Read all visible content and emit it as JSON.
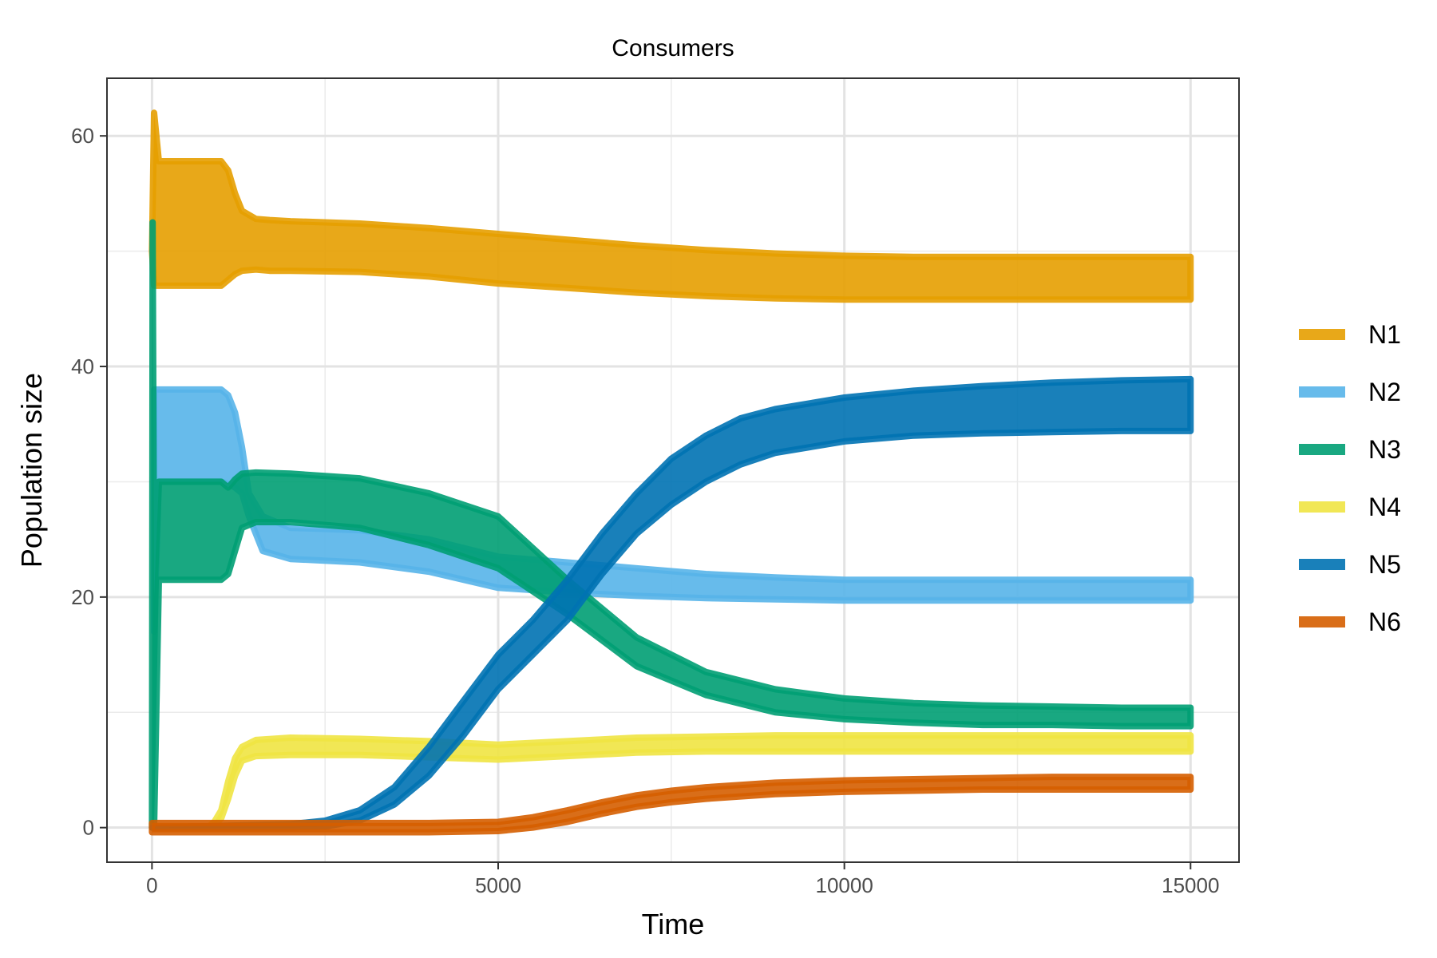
{
  "chart_data": {
    "type": "area",
    "title": "Consumers",
    "xlabel": "Time",
    "ylabel": "Population size",
    "xlim": [
      -650,
      15700
    ],
    "ylim": [
      -3,
      65
    ],
    "xticks": [
      0,
      5000,
      10000,
      15000
    ],
    "xtick_labels": [
      "0",
      "5000",
      "10000",
      "15000"
    ],
    "yticks": [
      0,
      20,
      40,
      60
    ],
    "ytick_labels": [
      "0",
      "20",
      "40",
      "60"
    ],
    "grid": true,
    "legend_position": "right",
    "series": [
      {
        "name": "N1",
        "color": "#E69F00",
        "x": [
          0,
          30,
          100,
          1000,
          1100,
          1200,
          1300,
          1500,
          1700,
          2000,
          3000,
          4000,
          5000,
          6000,
          7000,
          8000,
          9000,
          10000,
          11000,
          12000,
          13000,
          14000,
          15000
        ],
        "y_low": [
          50,
          47,
          47,
          47,
          47.5,
          48,
          48.3,
          48.4,
          48.3,
          48.3,
          48.2,
          47.8,
          47.2,
          46.8,
          46.4,
          46.1,
          45.9,
          45.8,
          45.8,
          45.8,
          45.8,
          45.8,
          45.8
        ],
        "y_high": [
          50,
          62,
          57.8,
          57.8,
          57,
          55,
          53.5,
          52.8,
          52.7,
          52.6,
          52.4,
          52,
          51.5,
          51,
          50.5,
          50.1,
          49.8,
          49.6,
          49.5,
          49.5,
          49.5,
          49.5,
          49.5
        ]
      },
      {
        "name": "N2",
        "color": "#56B4E9",
        "x": [
          30,
          100,
          1000,
          1100,
          1200,
          1300,
          1400,
          1600,
          2000,
          3000,
          4000,
          5000,
          6000,
          7000,
          8000,
          9000,
          10000,
          11000,
          12000,
          13000,
          14000,
          15000
        ],
        "y_low": [
          17,
          30,
          30,
          29.8,
          29.5,
          29,
          27,
          24,
          23.3,
          23,
          22.2,
          20.8,
          20.4,
          20.1,
          19.9,
          19.8,
          19.7,
          19.7,
          19.7,
          19.7,
          19.7,
          19.7
        ],
        "y_high": [
          38,
          38,
          38,
          37.5,
          36,
          33,
          29,
          27,
          26,
          25.8,
          25,
          23.5,
          23,
          22.5,
          22,
          21.7,
          21.5,
          21.5,
          21.5,
          21.5,
          21.5,
          21.5
        ]
      },
      {
        "name": "N3",
        "color": "#009E73",
        "x": [
          0,
          10,
          30,
          100,
          1000,
          1100,
          1200,
          1300,
          1500,
          2000,
          3000,
          4000,
          5000,
          6000,
          7000,
          8000,
          9000,
          10000,
          11000,
          12000,
          13000,
          14000,
          15000
        ],
        "y_low": [
          0,
          0,
          0,
          21.5,
          21.5,
          22,
          24,
          26,
          26.5,
          26.5,
          26,
          24.5,
          22.5,
          18.5,
          14,
          11.5,
          10,
          9.4,
          9.1,
          8.9,
          8.9,
          8.8,
          8.8
        ],
        "y_high": [
          0,
          52.5,
          20,
          30,
          30,
          29.5,
          30.2,
          30.7,
          30.8,
          30.7,
          30.3,
          29,
          27,
          21.5,
          16.5,
          13.5,
          12,
          11.2,
          10.8,
          10.6,
          10.5,
          10.4,
          10.4
        ]
      },
      {
        "name": "N4",
        "color": "#F0E442",
        "x": [
          0,
          800,
          900,
          1000,
          1100,
          1200,
          1300,
          1500,
          2000,
          3000,
          4000,
          5000,
          6000,
          7000,
          8000,
          9000,
          10000,
          11000,
          12000,
          13000,
          14000,
          15000
        ],
        "y_low": [
          0,
          0,
          0.2,
          0.8,
          2.5,
          4.5,
          5.8,
          6.2,
          6.3,
          6.3,
          6.1,
          5.9,
          6.2,
          6.5,
          6.6,
          6.6,
          6.6,
          6.6,
          6.6,
          6.6,
          6.6,
          6.6
        ],
        "y_high": [
          0,
          0,
          0.5,
          1.5,
          4,
          6,
          7,
          7.6,
          7.8,
          7.7,
          7.5,
          7.2,
          7.5,
          7.8,
          7.9,
          8,
          8,
          8,
          8,
          8,
          8,
          8
        ]
      },
      {
        "name": "N5",
        "color": "#0072B2",
        "x": [
          0,
          2000,
          2500,
          3000,
          3500,
          4000,
          4500,
          5000,
          5500,
          6000,
          6500,
          7000,
          7500,
          8000,
          8500,
          9000,
          10000,
          11000,
          12000,
          13000,
          14000,
          15000
        ],
        "y_low": [
          0,
          0,
          0.1,
          0.6,
          2,
          4.5,
          8,
          12,
          15,
          18,
          22,
          25.5,
          28,
          30,
          31.5,
          32.5,
          33.5,
          34,
          34.2,
          34.3,
          34.4,
          34.4
        ],
        "y_high": [
          0,
          0.3,
          0.6,
          1.5,
          3.5,
          7,
          11,
          15,
          18,
          21.5,
          25.5,
          29,
          32,
          34,
          35.5,
          36.3,
          37.3,
          37.9,
          38.3,
          38.6,
          38.8,
          38.9
        ]
      },
      {
        "name": "N6",
        "color": "#D55E00",
        "x": [
          0,
          4000,
          5000,
          5500,
          6000,
          6500,
          7000,
          7500,
          8000,
          9000,
          10000,
          11000,
          12000,
          13000,
          14000,
          15000
        ],
        "y_low": [
          -0.4,
          -0.4,
          -0.3,
          0,
          0.5,
          1.2,
          1.8,
          2.2,
          2.5,
          2.9,
          3.1,
          3.2,
          3.3,
          3.3,
          3.3,
          3.3
        ],
        "y_high": [
          0.4,
          0.4,
          0.5,
          0.9,
          1.5,
          2.2,
          2.8,
          3.2,
          3.5,
          3.9,
          4.1,
          4.2,
          4.3,
          4.4,
          4.4,
          4.4
        ]
      }
    ]
  }
}
